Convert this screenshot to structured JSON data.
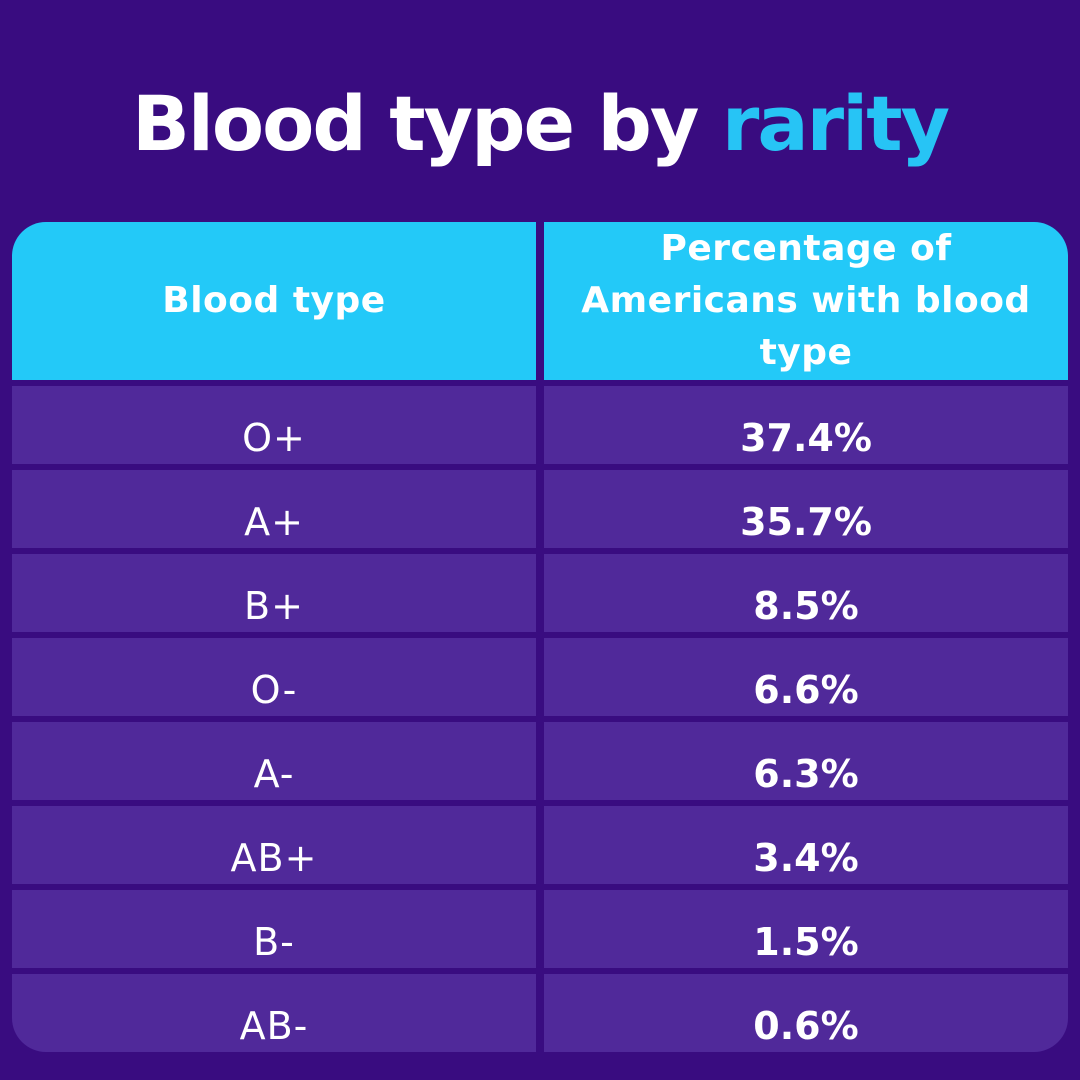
{
  "title": {
    "prefix": "Blood type by ",
    "highlight": "rarity"
  },
  "table": {
    "columns": [
      {
        "label": "Blood type"
      },
      {
        "label": "Percentage of Americans with blood type"
      }
    ],
    "rows": [
      {
        "type": "O+",
        "pct": "37.4%"
      },
      {
        "type": "A+",
        "pct": "35.7%"
      },
      {
        "type": "B+",
        "pct": "8.5%"
      },
      {
        "type": "O-",
        "pct": "6.6%"
      },
      {
        "type": "A-",
        "pct": "6.3%"
      },
      {
        "type": "AB+",
        "pct": "3.4%"
      },
      {
        "type": "B-",
        "pct": "1.5%"
      },
      {
        "type": "AB-",
        "pct": "0.6%"
      }
    ]
  },
  "colors": {
    "background": "#390C80",
    "row": "#50299A",
    "header": "#23C9F8",
    "accent_text": "#27C4F5",
    "text": "#FFFFFF",
    "backing_arc": "#5E35A6"
  },
  "chart_data": {
    "type": "table",
    "title": "Blood type by rarity",
    "categories": [
      "O+",
      "A+",
      "B+",
      "O-",
      "A-",
      "AB+",
      "B-",
      "AB-"
    ],
    "values": [
      37.4,
      35.7,
      8.5,
      6.6,
      6.3,
      3.4,
      1.5,
      0.6
    ],
    "columns": [
      "Blood type",
      "Percentage of Americans with blood type"
    ],
    "unit": "%"
  }
}
